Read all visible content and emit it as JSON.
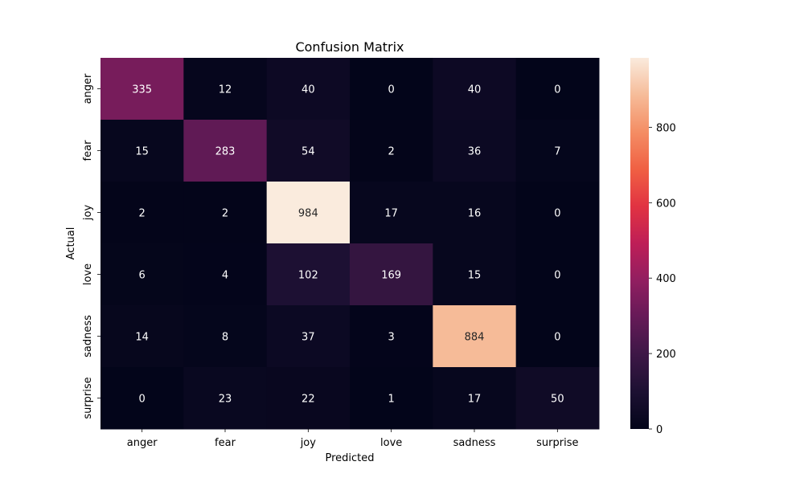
{
  "chart_data": {
    "type": "heatmap",
    "title": "Confusion Matrix",
    "xlabel": "Predicted",
    "ylabel": "Actual",
    "x_categories": [
      "anger",
      "fear",
      "joy",
      "love",
      "sadness",
      "surprise"
    ],
    "y_categories": [
      "anger",
      "fear",
      "joy",
      "love",
      "sadness",
      "surprise"
    ],
    "values": [
      [
        335,
        12,
        40,
        0,
        40,
        0
      ],
      [
        15,
        283,
        54,
        2,
        36,
        7
      ],
      [
        2,
        2,
        984,
        17,
        16,
        0
      ],
      [
        6,
        4,
        102,
        169,
        15,
        0
      ],
      [
        14,
        8,
        37,
        3,
        884,
        0
      ],
      [
        0,
        23,
        22,
        1,
        17,
        50
      ]
    ],
    "colormap": "rocket",
    "color_range": [
      0,
      984
    ],
    "colorbar_ticks": [
      0,
      200,
      400,
      600,
      800
    ]
  }
}
